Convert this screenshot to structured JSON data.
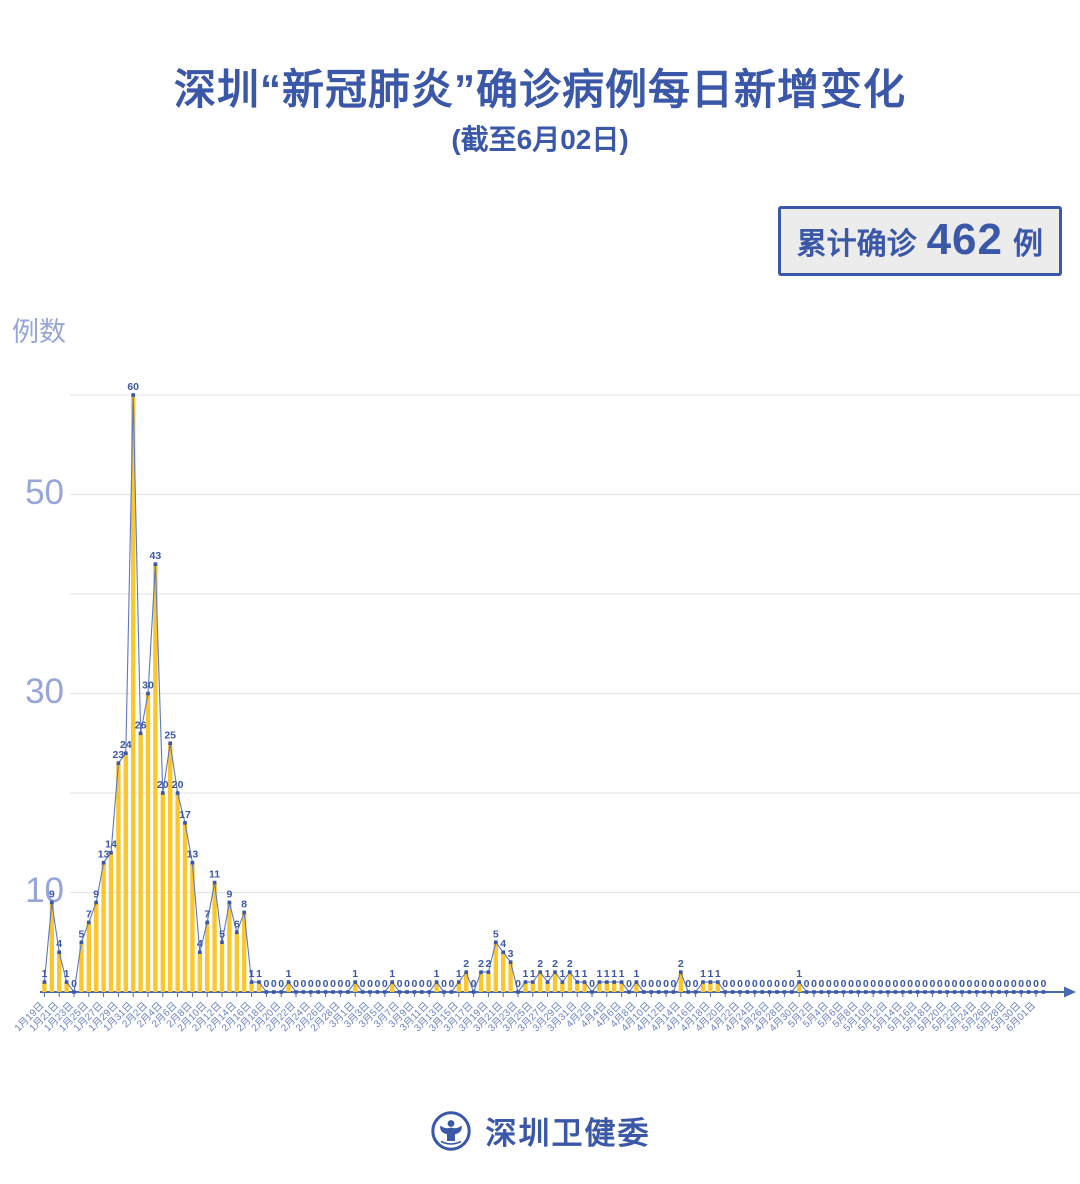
{
  "header": {
    "title": "深圳“新冠肺炎”确诊病例每日新增变化",
    "subtitle": "(截至6月02日)"
  },
  "badge": {
    "prefix": "累计确诊",
    "count": "462",
    "unit": "例"
  },
  "chart_data": {
    "type": "bar",
    "title": "深圳新冠肺炎确诊病例每日新增变化",
    "ylabel": "例数",
    "xlabel": "",
    "y_ticks": [
      10,
      30,
      50
    ],
    "y_gridlines": [
      10,
      20,
      30,
      40,
      50,
      60
    ],
    "ylim": [
      0,
      66
    ],
    "x_tick_step": 2,
    "x_tick_labels": [
      "1月19日",
      "1月21日",
      "1月23日",
      "1月25日",
      "1月27日",
      "1月29日",
      "1月31日",
      "2月2日",
      "2月4日",
      "2月6日",
      "2月8日",
      "2月10日",
      "2月12日",
      "2月14日",
      "2月16日",
      "2月18日",
      "2月20日",
      "2月22日",
      "2月24日",
      "2月26日",
      "2月28日",
      "3月1日",
      "3月3日",
      "3月5日",
      "3月7日",
      "3月9日",
      "3月11日",
      "3月13日",
      "3月15日",
      "3月17日",
      "3月19日",
      "3月21日",
      "3月23日",
      "3月25日",
      "3月27日",
      "3月29日",
      "3月31日",
      "4月2日",
      "4月4日",
      "4月6日",
      "4月8日",
      "4月10日",
      "4月12日",
      "4月14日",
      "4月16日",
      "4月18日",
      "4月20日",
      "4月22日",
      "4月24日",
      "4月26日",
      "4月28日",
      "4月30日",
      "5月2日",
      "5月4日",
      "5月6日",
      "5月8日",
      "5月10日",
      "5月12日",
      "5月14日",
      "5月16日",
      "5月18日",
      "5月20日",
      "5月22日",
      "5月24日",
      "5月26日",
      "5月28日",
      "5月30日",
      "6月01日"
    ],
    "values": [
      1,
      9,
      4,
      1,
      0,
      5,
      7,
      9,
      13,
      14,
      23,
      24,
      60,
      26,
      30,
      43,
      20,
      25,
      20,
      17,
      13,
      4,
      7,
      11,
      5,
      9,
      6,
      8,
      1,
      1,
      0,
      0,
      0,
      1,
      0,
      0,
      0,
      0,
      0,
      0,
      0,
      0,
      1,
      0,
      0,
      0,
      0,
      1,
      0,
      0,
      0,
      0,
      0,
      1,
      0,
      0,
      1,
      2,
      0,
      2,
      2,
      5,
      4,
      3,
      0,
      1,
      1,
      2,
      1,
      2,
      1,
      2,
      1,
      1,
      0,
      1,
      1,
      1,
      1,
      0,
      1,
      0,
      0,
      0,
      0,
      0,
      2,
      0,
      0,
      1,
      1,
      1,
      0,
      0,
      0,
      0,
      0,
      0,
      0,
      0,
      0,
      0,
      1,
      0,
      0,
      0,
      0,
      0,
      0,
      0,
      0,
      0,
      0,
      0,
      0,
      0,
      0,
      0,
      0,
      0,
      0,
      0,
      0,
      0,
      0,
      0,
      0,
      0,
      0,
      0,
      0,
      0,
      0,
      0,
      0,
      0
    ],
    "cumulative_total": 462,
    "legend": [],
    "grid": true,
    "colors": {
      "bar": "#fcc62d",
      "line": "#5e78c0",
      "marker": "#3a57a8",
      "value_label": "#3a57a8",
      "axis": "#4a68b0",
      "grid": "#e6e6e6",
      "x_tick_label": "#6d82c4",
      "y_tick_label": "#97a5d8"
    }
  },
  "footer": {
    "org": "深圳卫健委"
  }
}
